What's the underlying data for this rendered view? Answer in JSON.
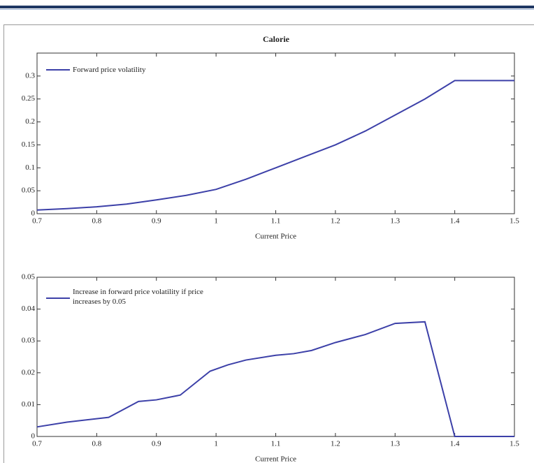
{
  "chart_data": [
    {
      "type": "line",
      "title": "Calorie",
      "xlabel": "Current Price",
      "x": [
        0.7,
        0.75,
        0.8,
        0.85,
        0.9,
        0.95,
        1.0,
        1.05,
        1.1,
        1.15,
        1.2,
        1.25,
        1.3,
        1.35,
        1.4,
        1.5
      ],
      "series": [
        {
          "name": "Forward price volatility",
          "color": "#3c40a8",
          "values": [
            0.008,
            0.011,
            0.015,
            0.021,
            0.03,
            0.04,
            0.053,
            0.075,
            0.1,
            0.125,
            0.15,
            0.18,
            0.215,
            0.25,
            0.29,
            0.29
          ]
        }
      ],
      "xlim": [
        0.7,
        1.5
      ],
      "xticks": [
        0.7,
        0.8,
        0.9,
        1,
        1.1,
        1.2,
        1.3,
        1.4,
        1.5
      ],
      "ylim": [
        0,
        0.35
      ],
      "yticks": [
        0,
        0.05,
        0.1,
        0.15,
        0.2,
        0.25,
        0.3
      ],
      "legend": "upper left"
    },
    {
      "type": "line",
      "xlabel": "Current Price",
      "x": [
        0.7,
        0.75,
        0.82,
        0.87,
        0.9,
        0.94,
        0.99,
        1.02,
        1.05,
        1.1,
        1.13,
        1.16,
        1.2,
        1.25,
        1.3,
        1.35,
        1.4,
        1.5
      ],
      "series": [
        {
          "name": "Increase in forward price volatility if price increases by 0.05",
          "color": "#3c40a8",
          "values": [
            0.003,
            0.0045,
            0.006,
            0.011,
            0.0115,
            0.013,
            0.0205,
            0.0225,
            0.024,
            0.0255,
            0.026,
            0.027,
            0.0295,
            0.032,
            0.0355,
            0.036,
            0,
            0
          ]
        }
      ],
      "xlim": [
        0.7,
        1.5
      ],
      "xticks": [
        0.7,
        0.8,
        0.9,
        1,
        1.1,
        1.2,
        1.3,
        1.4,
        1.5
      ],
      "ylim": [
        0,
        0.05
      ],
      "yticks": [
        0,
        0.01,
        0.02,
        0.03,
        0.04,
        0.05
      ],
      "legend": "upper left"
    }
  ]
}
